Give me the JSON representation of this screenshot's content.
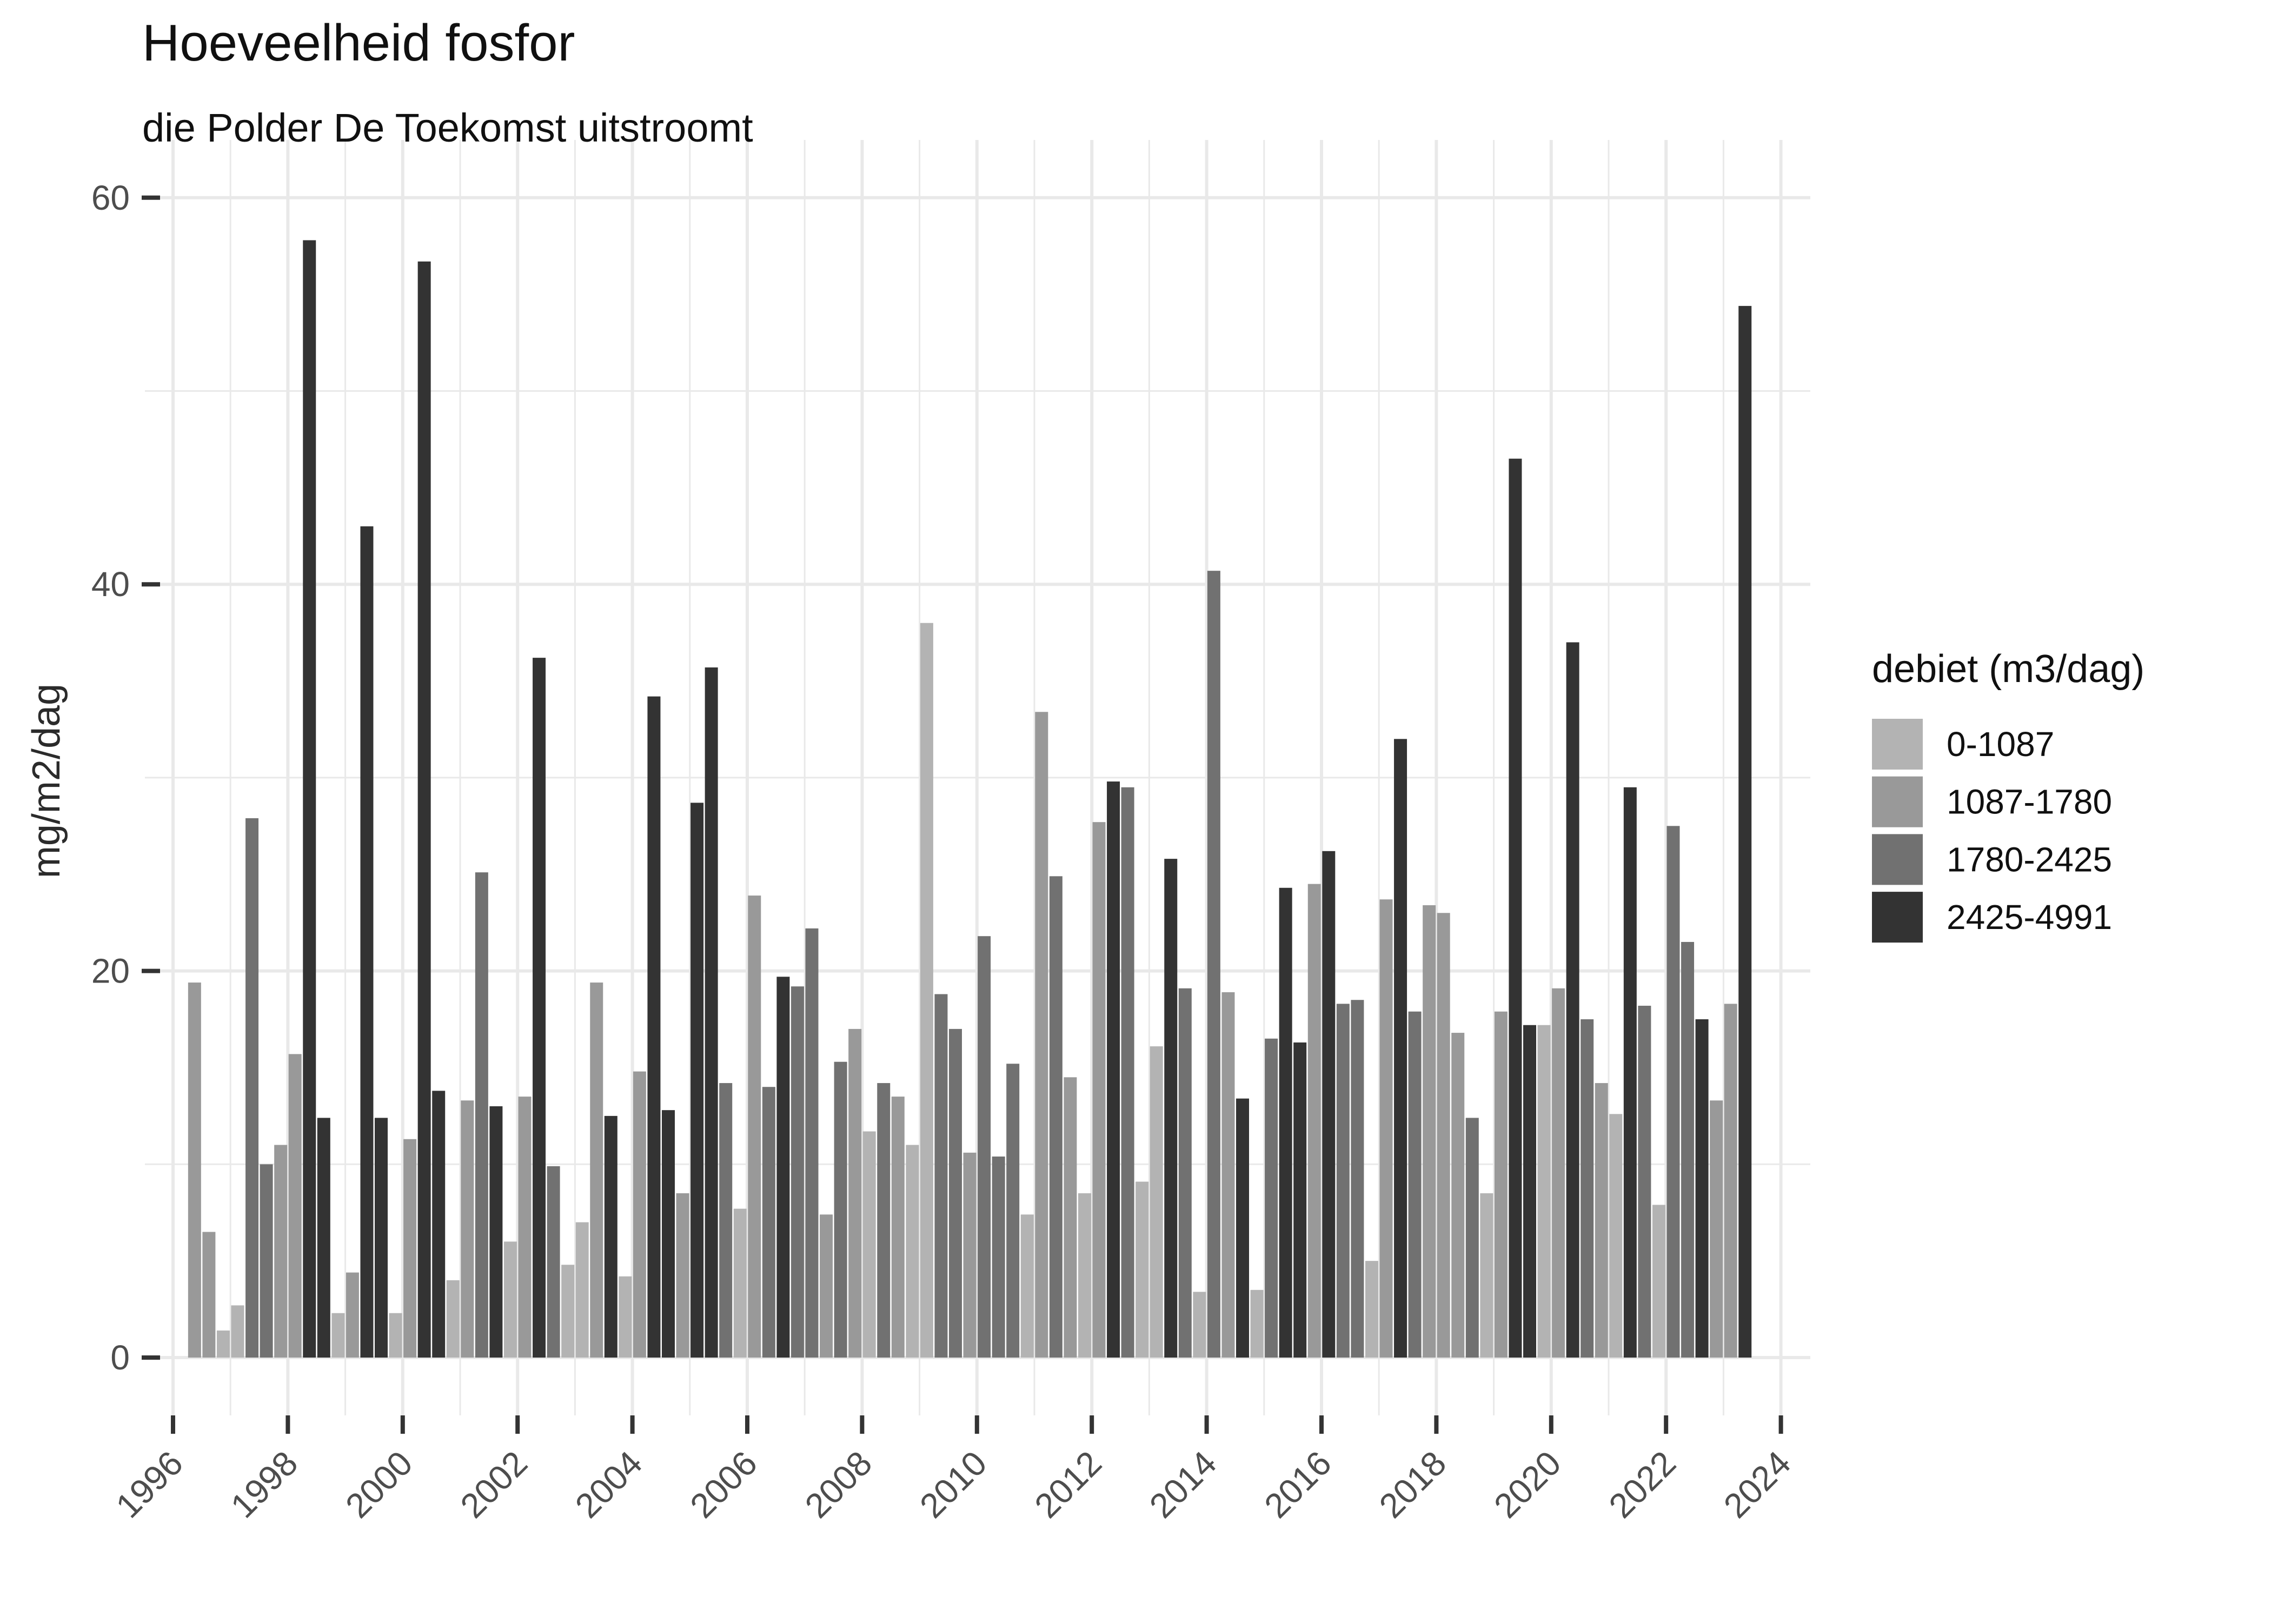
{
  "chart_data": {
    "type": "bar",
    "title": "Hoeveelheid fosfor",
    "subtitle": "die Polder De Toekomst uitstroomt",
    "ylabel": "mg/m2/dag",
    "xlabel": "",
    "ylim": [
      0,
      60
    ],
    "yticks": [
      0,
      20,
      40,
      60
    ],
    "yticks_minor": [
      10,
      30,
      50
    ],
    "xticks": [
      1996,
      1998,
      2000,
      2002,
      2004,
      2006,
      2008,
      2010,
      2012,
      2014,
      2016,
      2018,
      2020,
      2022,
      2024
    ],
    "x_range_years": [
      1996,
      2024
    ],
    "grid": "on",
    "background": "#ffffff",
    "gridline_color": "#e9e9e9",
    "legend_title": "debiet (m3/dag)",
    "legend_position": "right",
    "legend": [
      {
        "label": "0-1087",
        "color": "#b3b3b3"
      },
      {
        "label": "1087-1780",
        "color": "#999999"
      },
      {
        "label": "1780-2425",
        "color": "#717171"
      },
      {
        "label": "2425-4991",
        "color": "#333333"
      }
    ],
    "bars_format": "[year, quarter(1-4), value_mg_m2_dag, legend_category_index]",
    "bars": [
      [
        1996,
        2,
        19.4,
        1
      ],
      [
        1996,
        3,
        6.5,
        1
      ],
      [
        1996,
        4,
        1.4,
        0
      ],
      [
        1997,
        1,
        2.7,
        0
      ],
      [
        1997,
        2,
        27.9,
        2
      ],
      [
        1997,
        3,
        10.0,
        2
      ],
      [
        1997,
        4,
        11.0,
        1
      ],
      [
        1998,
        1,
        15.7,
        1
      ],
      [
        1998,
        2,
        57.8,
        3
      ],
      [
        1998,
        3,
        12.4,
        3
      ],
      [
        1998,
        4,
        2.3,
        0
      ],
      [
        1999,
        1,
        4.4,
        1
      ],
      [
        1999,
        2,
        43.0,
        3
      ],
      [
        1999,
        3,
        12.4,
        3
      ],
      [
        1999,
        4,
        2.3,
        0
      ],
      [
        2000,
        1,
        11.3,
        1
      ],
      [
        2000,
        2,
        56.7,
        3
      ],
      [
        2000,
        3,
        13.8,
        3
      ],
      [
        2000,
        4,
        4.0,
        0
      ],
      [
        2001,
        1,
        13.3,
        1
      ],
      [
        2001,
        2,
        25.1,
        2
      ],
      [
        2001,
        3,
        13.0,
        3
      ],
      [
        2001,
        4,
        6.0,
        0
      ],
      [
        2002,
        1,
        13.5,
        1
      ],
      [
        2002,
        2,
        36.2,
        3
      ],
      [
        2002,
        3,
        9.9,
        2
      ],
      [
        2002,
        4,
        4.8,
        0
      ],
      [
        2003,
        1,
        7.0,
        0
      ],
      [
        2003,
        2,
        19.4,
        1
      ],
      [
        2003,
        3,
        12.5,
        3
      ],
      [
        2003,
        4,
        4.2,
        0
      ],
      [
        2004,
        1,
        14.8,
        1
      ],
      [
        2004,
        2,
        34.2,
        3
      ],
      [
        2004,
        3,
        12.8,
        3
      ],
      [
        2004,
        4,
        8.5,
        1
      ],
      [
        2005,
        1,
        28.7,
        3
      ],
      [
        2005,
        2,
        35.7,
        3
      ],
      [
        2005,
        3,
        14.2,
        2
      ],
      [
        2005,
        4,
        7.7,
        0
      ],
      [
        2006,
        1,
        23.9,
        1
      ],
      [
        2006,
        2,
        14.0,
        2
      ],
      [
        2006,
        3,
        19.7,
        3
      ],
      [
        2006,
        4,
        19.2,
        2
      ],
      [
        2007,
        1,
        22.2,
        2
      ],
      [
        2007,
        2,
        7.4,
        1
      ],
      [
        2007,
        3,
        15.3,
        2
      ],
      [
        2007,
        4,
        17.0,
        1
      ],
      [
        2008,
        1,
        11.7,
        0
      ],
      [
        2008,
        2,
        14.2,
        2
      ],
      [
        2008,
        3,
        13.5,
        1
      ],
      [
        2008,
        4,
        11.0,
        0
      ],
      [
        2009,
        1,
        38.0,
        0
      ],
      [
        2009,
        2,
        18.8,
        2
      ],
      [
        2009,
        3,
        17.0,
        2
      ],
      [
        2009,
        4,
        10.6,
        1
      ],
      [
        2010,
        1,
        21.8,
        2
      ],
      [
        2010,
        2,
        10.4,
        2
      ],
      [
        2010,
        3,
        15.2,
        2
      ],
      [
        2010,
        4,
        7.4,
        0
      ],
      [
        2011,
        1,
        33.4,
        1
      ],
      [
        2011,
        2,
        24.9,
        2
      ],
      [
        2011,
        3,
        14.5,
        1
      ],
      [
        2011,
        4,
        8.5,
        0
      ],
      [
        2012,
        1,
        27.7,
        1
      ],
      [
        2012,
        2,
        29.8,
        3
      ],
      [
        2012,
        3,
        29.5,
        2
      ],
      [
        2012,
        4,
        9.1,
        0
      ],
      [
        2013,
        1,
        16.1,
        0
      ],
      [
        2013,
        2,
        25.8,
        3
      ],
      [
        2013,
        3,
        19.1,
        2
      ],
      [
        2013,
        4,
        3.4,
        0
      ],
      [
        2014,
        1,
        40.7,
        2
      ],
      [
        2014,
        2,
        18.9,
        1
      ],
      [
        2014,
        3,
        13.4,
        3
      ],
      [
        2014,
        4,
        3.5,
        0
      ],
      [
        2015,
        1,
        16.5,
        2
      ],
      [
        2015,
        2,
        24.3,
        3
      ],
      [
        2015,
        3,
        16.3,
        3
      ],
      [
        2015,
        4,
        24.5,
        1
      ],
      [
        2016,
        1,
        26.2,
        3
      ],
      [
        2016,
        2,
        18.3,
        2
      ],
      [
        2016,
        3,
        18.5,
        2
      ],
      [
        2016,
        4,
        5.0,
        0
      ],
      [
        2017,
        1,
        23.7,
        1
      ],
      [
        2017,
        2,
        32.0,
        3
      ],
      [
        2017,
        3,
        17.9,
        2
      ],
      [
        2017,
        4,
        23.4,
        1
      ],
      [
        2018,
        1,
        23.0,
        1
      ],
      [
        2018,
        2,
        16.8,
        1
      ],
      [
        2018,
        3,
        12.4,
        2
      ],
      [
        2018,
        4,
        8.5,
        0
      ],
      [
        2019,
        1,
        17.9,
        1
      ],
      [
        2019,
        2,
        46.5,
        3
      ],
      [
        2019,
        3,
        17.2,
        3
      ],
      [
        2019,
        4,
        17.2,
        0
      ],
      [
        2020,
        1,
        19.1,
        1
      ],
      [
        2020,
        2,
        37.0,
        3
      ],
      [
        2020,
        3,
        17.5,
        2
      ],
      [
        2020,
        4,
        14.2,
        1
      ],
      [
        2021,
        1,
        12.6,
        0
      ],
      [
        2021,
        2,
        29.5,
        3
      ],
      [
        2021,
        3,
        18.2,
        2
      ],
      [
        2021,
        4,
        7.9,
        0
      ],
      [
        2022,
        1,
        27.5,
        2
      ],
      [
        2022,
        2,
        21.5,
        2
      ],
      [
        2022,
        3,
        17.5,
        3
      ],
      [
        2022,
        4,
        13.3,
        1
      ],
      [
        2023,
        1,
        18.3,
        1
      ],
      [
        2023,
        2,
        54.4,
        3
      ]
    ]
  }
}
